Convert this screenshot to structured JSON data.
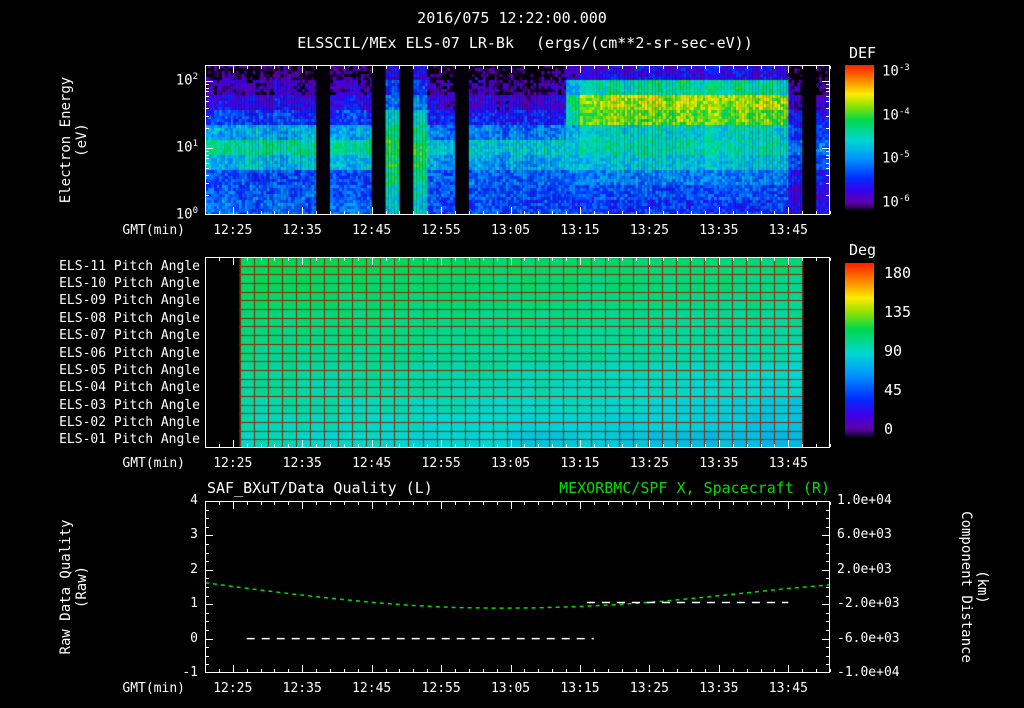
{
  "header": {
    "title": "2016/075 12:22:00.000",
    "instrument": "ELSSCIL/MEx ELS-07 LR-Bk",
    "units": "(ergs/(cm**2-sr-sec-eV))"
  },
  "colors": {
    "background": "#000000",
    "text": "#ffffff",
    "frame": "#ffffff",
    "grid_red": "#992200"
  },
  "time_axis": {
    "label": "GMT(min)",
    "start": "12:21",
    "end": "13:51",
    "minor_step_min": 2,
    "ticks": [
      "12:25",
      "12:35",
      "12:45",
      "12:55",
      "13:05",
      "13:15",
      "13:25",
      "13:35",
      "13:45"
    ]
  },
  "chart_data": [
    {
      "id": "electron_energy_spectrogram",
      "type": "heatmap",
      "title": "ELSSCIL/MEx ELS-07 LR-Bk",
      "ylabel_lines": [
        "Electron Energy",
        "(eV)"
      ],
      "yticks": [
        "10^0",
        "10^1",
        "10^2"
      ],
      "y_log_decades": [
        0,
        2.24
      ],
      "colorbar": {
        "label": "DEF",
        "units": "(ergs/(cm**2-sr-sec-eV))",
        "ticks": [
          "10^-3",
          "10^-4",
          "10^-5",
          "10^-6"
        ],
        "log10_range": [
          -6,
          -3
        ]
      },
      "columns_start": "12:21",
      "minutes_per_col": 2,
      "energy_rows_bottom_to_top": 10,
      "values_log10": [
        [
          -5.1,
          -5.2,
          -5.2,
          -4.7,
          -4.35,
          -4.8,
          -5.3,
          -5.6,
          -5.8,
          -6.0
        ],
        [
          -5.0,
          -5.1,
          -5.2,
          -4.8,
          -4.4,
          -4.9,
          -5.2,
          -5.5,
          -5.7,
          -5.9
        ],
        [
          -5.1,
          -5.2,
          -5.2,
          -4.7,
          -4.35,
          -4.8,
          -5.3,
          -5.6,
          -5.8,
          -6.0
        ],
        [
          -5.2,
          -5.1,
          -5.3,
          -4.6,
          -4.45,
          -4.7,
          -5.3,
          -5.6,
          -5.8,
          -6.1
        ],
        [
          -5.1,
          -5.2,
          -5.2,
          -4.7,
          -4.35,
          -4.8,
          -5.3,
          -5.6,
          -5.8,
          -6.0
        ],
        [
          -5.0,
          -5.1,
          -5.2,
          -4.8,
          -4.4,
          -4.9,
          -5.2,
          -5.5,
          -5.7,
          -5.9
        ],
        [
          -5.1,
          -5.2,
          -5.2,
          -4.7,
          -4.35,
          -4.8,
          -5.3,
          -5.6,
          -5.8,
          -6.0
        ],
        [
          -5.2,
          -5.1,
          -5.3,
          -4.6,
          -4.45,
          -4.7,
          -5.3,
          -5.6,
          -5.8,
          -6.1
        ],
        [
          -6.8,
          -6.8,
          -6.8,
          -6.8,
          -6.8,
          -6.8,
          -6.8,
          -6.8,
          -6.8,
          -6.8
        ],
        [
          -5.1,
          -5.2,
          -5.2,
          -4.7,
          -4.35,
          -4.8,
          -5.3,
          -5.6,
          -5.8,
          -6.0
        ],
        [
          -5.0,
          -5.1,
          -5.2,
          -4.8,
          -4.4,
          -4.9,
          -5.2,
          -5.5,
          -5.7,
          -5.9
        ],
        [
          -5.1,
          -5.2,
          -5.2,
          -4.7,
          -4.35,
          -4.8,
          -5.3,
          -5.6,
          -5.8,
          -6.0
        ],
        [
          -6.8,
          -6.8,
          -6.8,
          -6.8,
          -6.8,
          -6.8,
          -6.8,
          -6.8,
          -6.8,
          -6.8
        ],
        [
          -4.6,
          -4.5,
          -4.3,
          -4.2,
          -4.15,
          -4.3,
          -4.6,
          -5.0,
          -5.3,
          -5.6
        ],
        [
          -6.8,
          -6.8,
          -6.8,
          -6.8,
          -6.8,
          -6.8,
          -6.8,
          -6.8,
          -6.8,
          -6.8
        ],
        [
          -4.6,
          -4.5,
          -4.3,
          -4.2,
          -4.15,
          -4.3,
          -4.6,
          -5.0,
          -5.3,
          -5.6
        ],
        [
          -5.2,
          -5.2,
          -5.1,
          -4.8,
          -4.6,
          -5.0,
          -5.4,
          -5.6,
          -5.8,
          -6.0
        ],
        [
          -5.3,
          -5.2,
          -5.2,
          -4.9,
          -4.7,
          -5.1,
          -5.4,
          -5.7,
          -5.9,
          -6.1
        ],
        [
          -6.8,
          -6.8,
          -6.8,
          -6.8,
          -6.8,
          -6.8,
          -6.8,
          -6.8,
          -6.8,
          -6.8
        ],
        [
          -5.2,
          -5.2,
          -5.1,
          -4.8,
          -4.6,
          -5.0,
          -5.4,
          -5.6,
          -5.8,
          -6.0
        ],
        [
          -5.2,
          -5.2,
          -5.1,
          -4.8,
          -4.6,
          -5.0,
          -5.4,
          -5.6,
          -5.8,
          -6.0
        ],
        [
          -5.3,
          -5.2,
          -5.2,
          -4.9,
          -4.7,
          -5.1,
          -5.4,
          -5.7,
          -5.9,
          -6.1
        ],
        [
          -5.2,
          -5.2,
          -5.1,
          -4.8,
          -4.6,
          -5.0,
          -5.4,
          -5.6,
          -5.8,
          -6.0
        ],
        [
          -5.3,
          -5.2,
          -5.2,
          -4.9,
          -4.7,
          -5.1,
          -5.4,
          -5.7,
          -5.9,
          -6.1
        ],
        [
          -5.2,
          -5.2,
          -5.1,
          -4.8,
          -4.6,
          -5.0,
          -5.4,
          -5.6,
          -5.8,
          -6.0
        ],
        [
          -5.2,
          -5.2,
          -5.1,
          -4.8,
          -4.6,
          -5.0,
          -5.4,
          -5.6,
          -5.8,
          -6.0
        ],
        [
          -5.3,
          -5.2,
          -5.0,
          -4.7,
          -4.6,
          -4.8,
          -4.4,
          -4.3,
          -4.8,
          -5.7
        ],
        [
          -5.3,
          -5.2,
          -5.0,
          -4.7,
          -4.5,
          -4.6,
          -4.0,
          -3.85,
          -4.5,
          -5.6
        ],
        [
          -5.3,
          -5.2,
          -5.0,
          -4.7,
          -4.5,
          -4.6,
          -4.0,
          -3.85,
          -4.5,
          -5.6
        ],
        [
          -5.3,
          -5.2,
          -5.0,
          -4.6,
          -4.4,
          -4.5,
          -3.9,
          -3.75,
          -4.3,
          -5.5
        ],
        [
          -5.3,
          -5.2,
          -5.0,
          -4.7,
          -4.5,
          -4.6,
          -4.0,
          -3.85,
          -4.5,
          -5.6
        ],
        [
          -5.3,
          -5.2,
          -5.0,
          -4.6,
          -4.4,
          -4.5,
          -3.9,
          -3.75,
          -4.3,
          -5.5
        ],
        [
          -5.3,
          -5.2,
          -5.0,
          -4.6,
          -4.4,
          -4.5,
          -3.9,
          -3.75,
          -4.3,
          -5.5
        ],
        [
          -5.3,
          -5.2,
          -5.0,
          -4.7,
          -4.5,
          -4.6,
          -4.0,
          -3.85,
          -4.5,
          -5.6
        ],
        [
          -5.3,
          -5.2,
          -5.0,
          -4.6,
          -4.4,
          -4.5,
          -3.9,
          -3.75,
          -4.3,
          -5.5
        ],
        [
          -5.3,
          -5.2,
          -5.0,
          -4.7,
          -4.5,
          -4.6,
          -4.0,
          -3.85,
          -4.5,
          -5.6
        ],
        [
          -5.3,
          -5.2,
          -5.0,
          -4.6,
          -4.4,
          -4.5,
          -3.9,
          -3.75,
          -4.3,
          -5.5
        ],
        [
          -5.3,
          -5.2,
          -5.0,
          -4.7,
          -4.5,
          -4.6,
          -4.0,
          -3.85,
          -4.5,
          -5.6
        ],
        [
          -5.3,
          -5.2,
          -5.0,
          -4.6,
          -4.4,
          -4.5,
          -3.9,
          -3.75,
          -4.3,
          -5.5
        ],
        [
          -5.3,
          -5.2,
          -5.0,
          -4.7,
          -4.5,
          -4.6,
          -4.0,
          -3.85,
          -4.5,
          -5.6
        ],
        [
          -5.3,
          -5.2,
          -5.0,
          -4.6,
          -4.4,
          -4.5,
          -3.9,
          -3.75,
          -4.3,
          -5.5
        ],
        [
          -5.3,
          -5.2,
          -5.0,
          -4.7,
          -4.5,
          -4.6,
          -4.0,
          -3.85,
          -4.5,
          -5.6
        ],
        [
          -5.6,
          -5.6,
          -5.5,
          -5.2,
          -5.0,
          -5.3,
          -5.5,
          -5.7,
          -5.9,
          -6.1
        ],
        [
          -6.8,
          -6.8,
          -6.8,
          -6.8,
          -6.8,
          -6.8,
          -6.8,
          -6.8,
          -6.8,
          -6.8
        ],
        [
          -5.6,
          -5.6,
          -5.5,
          -5.2,
          -5.0,
          -5.3,
          -5.5,
          -5.7,
          -5.9,
          -6.1
        ]
      ]
    },
    {
      "id": "pitch_angle_panels",
      "type": "heatmap",
      "colorbar": {
        "label": "Deg",
        "ticks": [
          "180",
          "135",
          "90",
          "45",
          "0"
        ],
        "range": [
          0,
          180
        ]
      },
      "data_start": "12:26",
      "data_end": "13:47",
      "rows_top_to_bottom": [
        {
          "label": "ELS-11 Pitch Angle",
          "values_deg": [
            110,
            109,
            108,
            107,
            106,
            105,
            104,
            103
          ]
        },
        {
          "label": "ELS-10 Pitch Angle",
          "values_deg": [
            108,
            107,
            106,
            105,
            104,
            103,
            102,
            101
          ]
        },
        {
          "label": "ELS-09 Pitch Angle",
          "values_deg": [
            106,
            105,
            104,
            103,
            102,
            101,
            100,
            99
          ]
        },
        {
          "label": "ELS-08 Pitch Angle",
          "values_deg": [
            104,
            103,
            102,
            101,
            100,
            99,
            98,
            97
          ]
        },
        {
          "label": "ELS-07 Pitch Angle",
          "values_deg": [
            102,
            101,
            100,
            99,
            98,
            97,
            96,
            95
          ]
        },
        {
          "label": "ELS-06 Pitch Angle",
          "values_deg": [
            100,
            99,
            98,
            97,
            96,
            95,
            94,
            92
          ]
        },
        {
          "label": "ELS-05 Pitch Angle",
          "values_deg": [
            98,
            97,
            96,
            95,
            94,
            92,
            90,
            88
          ]
        },
        {
          "label": "ELS-04 Pitch Angle",
          "values_deg": [
            96,
            95,
            94,
            93,
            91,
            89,
            87,
            85
          ]
        },
        {
          "label": "ELS-03 Pitch Angle",
          "values_deg": [
            94,
            93,
            92,
            90,
            88,
            86,
            84,
            82
          ]
        },
        {
          "label": "ELS-02 Pitch Angle",
          "values_deg": [
            92,
            91,
            89,
            87,
            85,
            83,
            81,
            79
          ]
        },
        {
          "label": "ELS-01 Pitch Angle",
          "values_deg": [
            90,
            88,
            86,
            84,
            82,
            80,
            78,
            76
          ]
        }
      ]
    },
    {
      "id": "quality_and_distance",
      "type": "line",
      "title_left": "SAF_BXuT/Data Quality (L)",
      "title_right": "MEXORBMC/SPF X, Spacecraft (R)",
      "ylabel_left_lines": [
        "Raw Data Quality",
        "(Raw)"
      ],
      "ylabel_right_lines": [
        "Component Distance",
        "(km)"
      ],
      "ylim_left": [
        -1,
        4
      ],
      "yticks_left": [
        "4",
        "3",
        "2",
        "1",
        "0",
        "-1"
      ],
      "ylim_right": [
        -10000,
        10000
      ],
      "yticks_right": [
        "1.0e+04",
        "6.0e+03",
        "2.0e+03",
        "-2.0e+03",
        "-6.0e+03",
        "-1.0e+04"
      ],
      "series": [
        {
          "name": "MEXORBMC/SPF X, Spacecraft",
          "axis": "right",
          "color": "#00dd00",
          "style": "dashed",
          "t_min": [
            741,
            747,
            753,
            759,
            765,
            771,
            777,
            783,
            789,
            795,
            801,
            807,
            813,
            819,
            825,
            831
          ],
          "values_km": [
            500,
            -150,
            -750,
            -1300,
            -1780,
            -2150,
            -2380,
            -2460,
            -2420,
            -2270,
            -2010,
            -1650,
            -1190,
            -680,
            -180,
            250
          ]
        },
        {
          "name": "SAF_BXuT/Data Quality",
          "axis": "left",
          "color": "#ffffff",
          "style": "dashed",
          "segments": [
            {
              "t0": 747,
              "t1": 797,
              "value": 0
            },
            {
              "t0": 796,
              "t1": 825,
              "value": 1.05
            }
          ]
        }
      ]
    }
  ]
}
